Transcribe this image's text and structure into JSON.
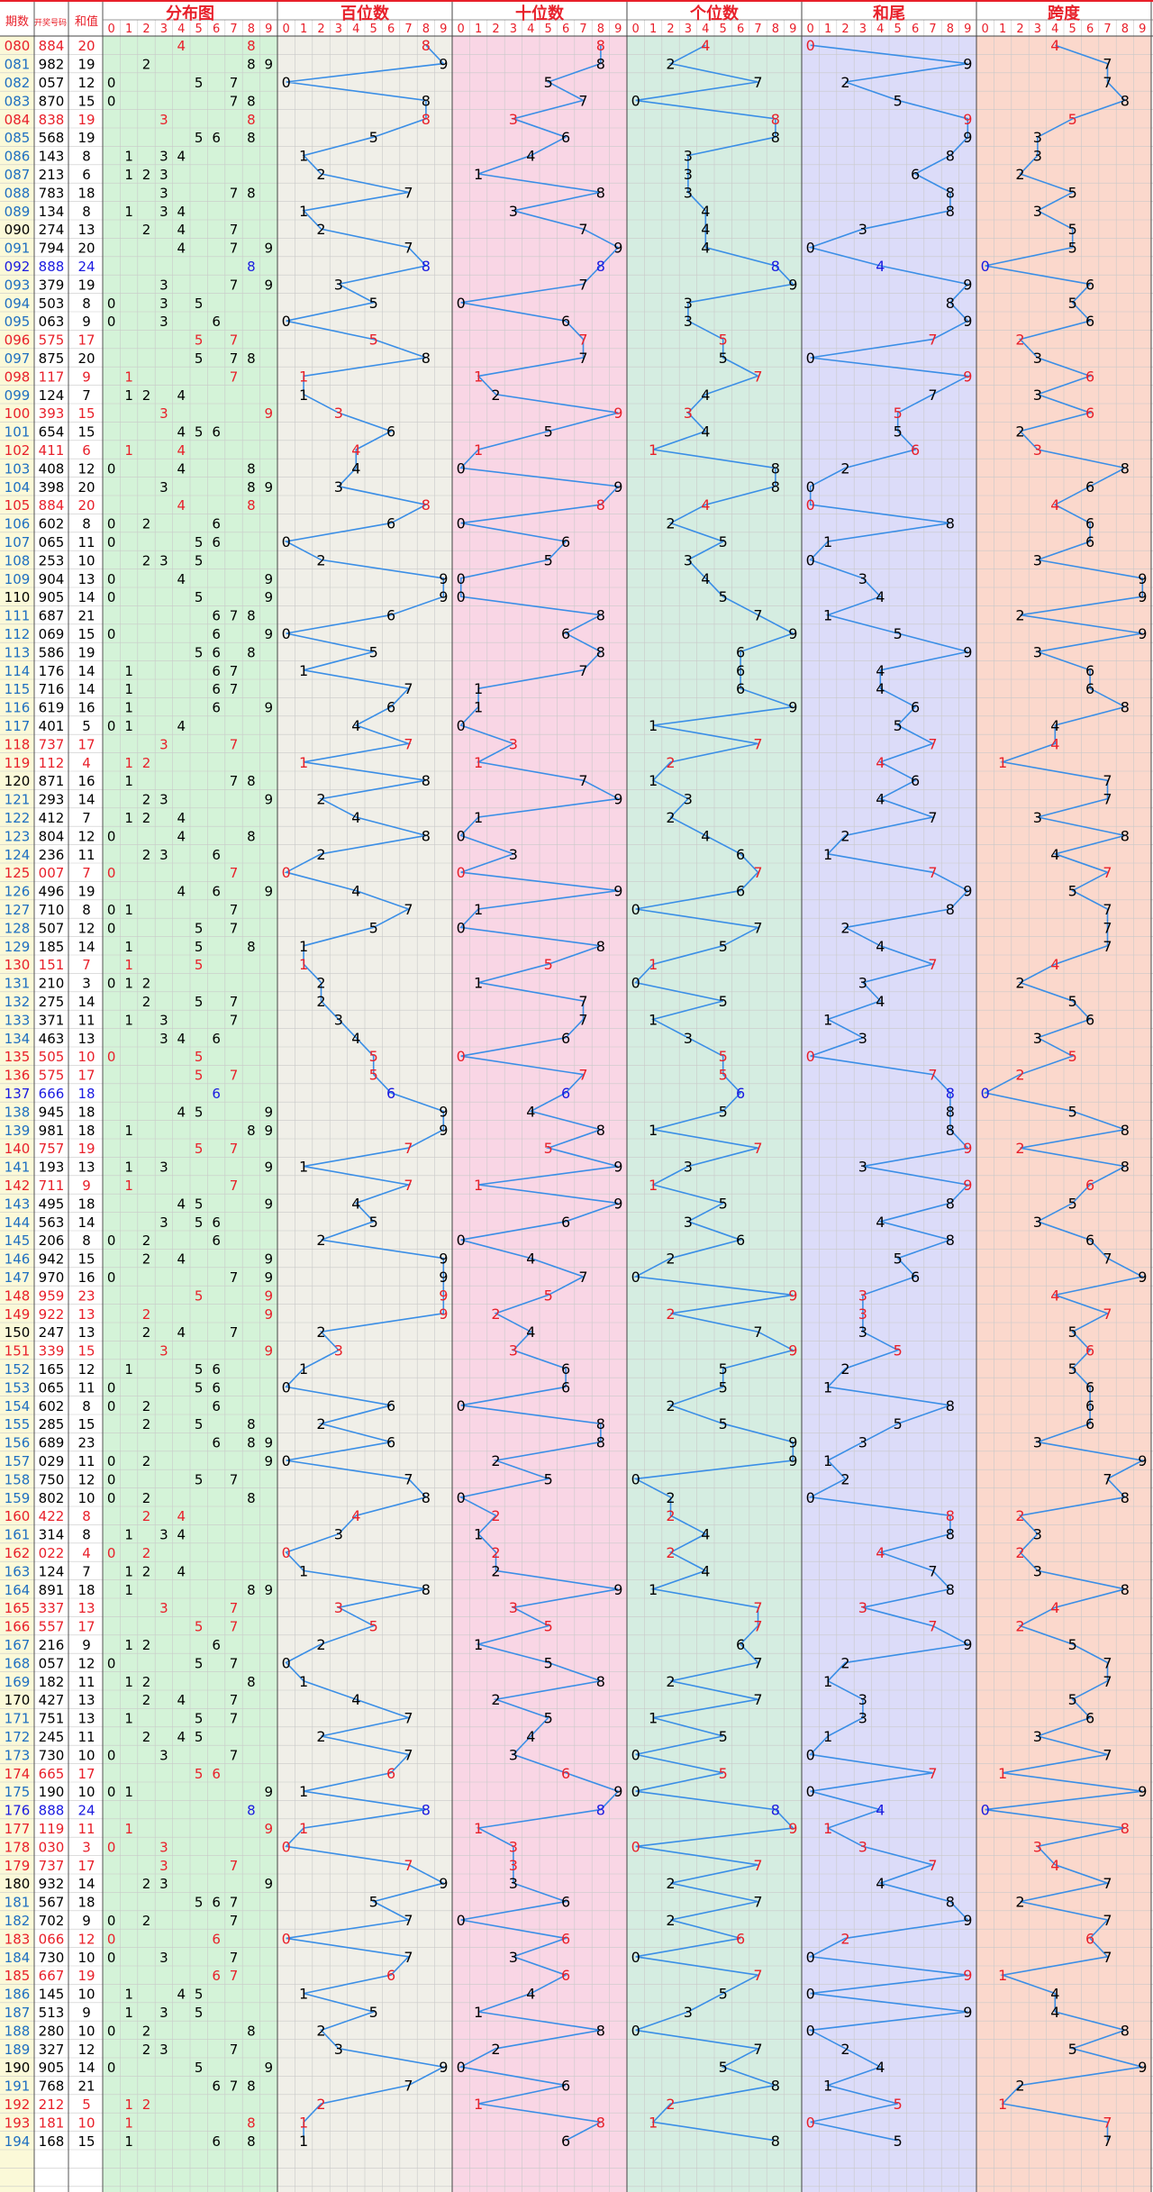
{
  "chart_data": {
    "type": "table",
    "headers": {
      "period": "期数",
      "draw": "开奖号码",
      "sum": "和值",
      "groups": [
        "分布图",
        "百位数",
        "十位数",
        "个位数",
        "和尾",
        "跨度"
      ]
    },
    "digit_labels": [
      "0",
      "1",
      "2",
      "3",
      "4",
      "5",
      "6",
      "7",
      "8",
      "9"
    ],
    "colors": {
      "distribution_bg": "#d4f3d8",
      "hundreds_bg": "#f0efe8",
      "tens_bg": "#f9d6e5",
      "units_bg": "#d5ede1",
      "sum_tail_bg": "#dcdcf9",
      "span_bg": "#fbd8cc",
      "period_col_bg": "#fbf9d8",
      "title_red": "#e8202a",
      "line_blue": "#3a8ee6",
      "grid": "#c9c9c9"
    },
    "rows": [
      {
        "p": "080",
        "n": "884"
      },
      {
        "p": "081",
        "n": "982"
      },
      {
        "p": "082",
        "n": "057"
      },
      {
        "p": "083",
        "n": "870"
      },
      {
        "p": "084",
        "n": "838"
      },
      {
        "p": "085",
        "n": "568"
      },
      {
        "p": "086",
        "n": "143"
      },
      {
        "p": "087",
        "n": "213"
      },
      {
        "p": "088",
        "n": "783"
      },
      {
        "p": "089",
        "n": "134"
      },
      {
        "p": "090",
        "n": "274"
      },
      {
        "p": "091",
        "n": "794"
      },
      {
        "p": "092",
        "n": "888"
      },
      {
        "p": "093",
        "n": "379"
      },
      {
        "p": "094",
        "n": "503"
      },
      {
        "p": "095",
        "n": "063"
      },
      {
        "p": "096",
        "n": "575"
      },
      {
        "p": "097",
        "n": "875"
      },
      {
        "p": "098",
        "n": "117"
      },
      {
        "p": "099",
        "n": "124"
      },
      {
        "p": "100",
        "n": "393"
      },
      {
        "p": "101",
        "n": "654"
      },
      {
        "p": "102",
        "n": "411"
      },
      {
        "p": "103",
        "n": "408"
      },
      {
        "p": "104",
        "n": "398"
      },
      {
        "p": "105",
        "n": "884"
      },
      {
        "p": "106",
        "n": "602"
      },
      {
        "p": "107",
        "n": "065"
      },
      {
        "p": "108",
        "n": "253"
      },
      {
        "p": "109",
        "n": "904"
      },
      {
        "p": "110",
        "n": "905"
      },
      {
        "p": "111",
        "n": "687"
      },
      {
        "p": "112",
        "n": "069"
      },
      {
        "p": "113",
        "n": "586"
      },
      {
        "p": "114",
        "n": "176"
      },
      {
        "p": "115",
        "n": "716"
      },
      {
        "p": "116",
        "n": "619"
      },
      {
        "p": "117",
        "n": "401"
      },
      {
        "p": "118",
        "n": "737"
      },
      {
        "p": "119",
        "n": "112"
      },
      {
        "p": "120",
        "n": "871"
      },
      {
        "p": "121",
        "n": "293"
      },
      {
        "p": "122",
        "n": "412"
      },
      {
        "p": "123",
        "n": "804"
      },
      {
        "p": "124",
        "n": "236"
      },
      {
        "p": "125",
        "n": "007"
      },
      {
        "p": "126",
        "n": "496"
      },
      {
        "p": "127",
        "n": "710"
      },
      {
        "p": "128",
        "n": "507"
      },
      {
        "p": "129",
        "n": "185"
      },
      {
        "p": "130",
        "n": "151"
      },
      {
        "p": "131",
        "n": "210"
      },
      {
        "p": "132",
        "n": "275"
      },
      {
        "p": "133",
        "n": "371"
      },
      {
        "p": "134",
        "n": "463"
      },
      {
        "p": "135",
        "n": "505"
      },
      {
        "p": "136",
        "n": "575"
      },
      {
        "p": "137",
        "n": "666"
      },
      {
        "p": "138",
        "n": "945"
      },
      {
        "p": "139",
        "n": "981"
      },
      {
        "p": "140",
        "n": "757"
      },
      {
        "p": "141",
        "n": "193"
      },
      {
        "p": "142",
        "n": "711"
      },
      {
        "p": "143",
        "n": "495"
      },
      {
        "p": "144",
        "n": "563"
      },
      {
        "p": "145",
        "n": "206"
      },
      {
        "p": "146",
        "n": "942"
      },
      {
        "p": "147",
        "n": "970"
      },
      {
        "p": "148",
        "n": "959"
      },
      {
        "p": "149",
        "n": "922"
      },
      {
        "p": "150",
        "n": "247"
      },
      {
        "p": "151",
        "n": "339"
      },
      {
        "p": "152",
        "n": "165"
      },
      {
        "p": "153",
        "n": "065"
      },
      {
        "p": "154",
        "n": "602"
      },
      {
        "p": "155",
        "n": "285"
      },
      {
        "p": "156",
        "n": "689"
      },
      {
        "p": "157",
        "n": "029"
      },
      {
        "p": "158",
        "n": "750"
      },
      {
        "p": "159",
        "n": "802"
      },
      {
        "p": "160",
        "n": "422"
      },
      {
        "p": "161",
        "n": "314"
      },
      {
        "p": "162",
        "n": "022"
      },
      {
        "p": "163",
        "n": "124"
      },
      {
        "p": "164",
        "n": "891"
      },
      {
        "p": "165",
        "n": "337"
      },
      {
        "p": "166",
        "n": "557"
      },
      {
        "p": "167",
        "n": "216"
      },
      {
        "p": "168",
        "n": "057"
      },
      {
        "p": "169",
        "n": "182"
      },
      {
        "p": "170",
        "n": "427"
      },
      {
        "p": "171",
        "n": "751"
      },
      {
        "p": "172",
        "n": "245"
      },
      {
        "p": "173",
        "n": "730"
      },
      {
        "p": "174",
        "n": "665"
      },
      {
        "p": "175",
        "n": "190"
      },
      {
        "p": "176",
        "n": "888"
      },
      {
        "p": "177",
        "n": "119"
      },
      {
        "p": "178",
        "n": "030"
      },
      {
        "p": "179",
        "n": "737"
      },
      {
        "p": "180",
        "n": "932"
      },
      {
        "p": "181",
        "n": "567"
      },
      {
        "p": "182",
        "n": "702"
      },
      {
        "p": "183",
        "n": "066"
      },
      {
        "p": "184",
        "n": "730"
      },
      {
        "p": "185",
        "n": "667"
      },
      {
        "p": "186",
        "n": "145"
      },
      {
        "p": "187",
        "n": "513"
      },
      {
        "p": "188",
        "n": "280"
      },
      {
        "p": "189",
        "n": "327"
      },
      {
        "p": "190",
        "n": "905"
      },
      {
        "p": "191",
        "n": "768"
      },
      {
        "p": "192",
        "n": "212"
      },
      {
        "p": "193",
        "n": "181"
      },
      {
        "p": "194",
        "n": "168"
      }
    ]
  }
}
